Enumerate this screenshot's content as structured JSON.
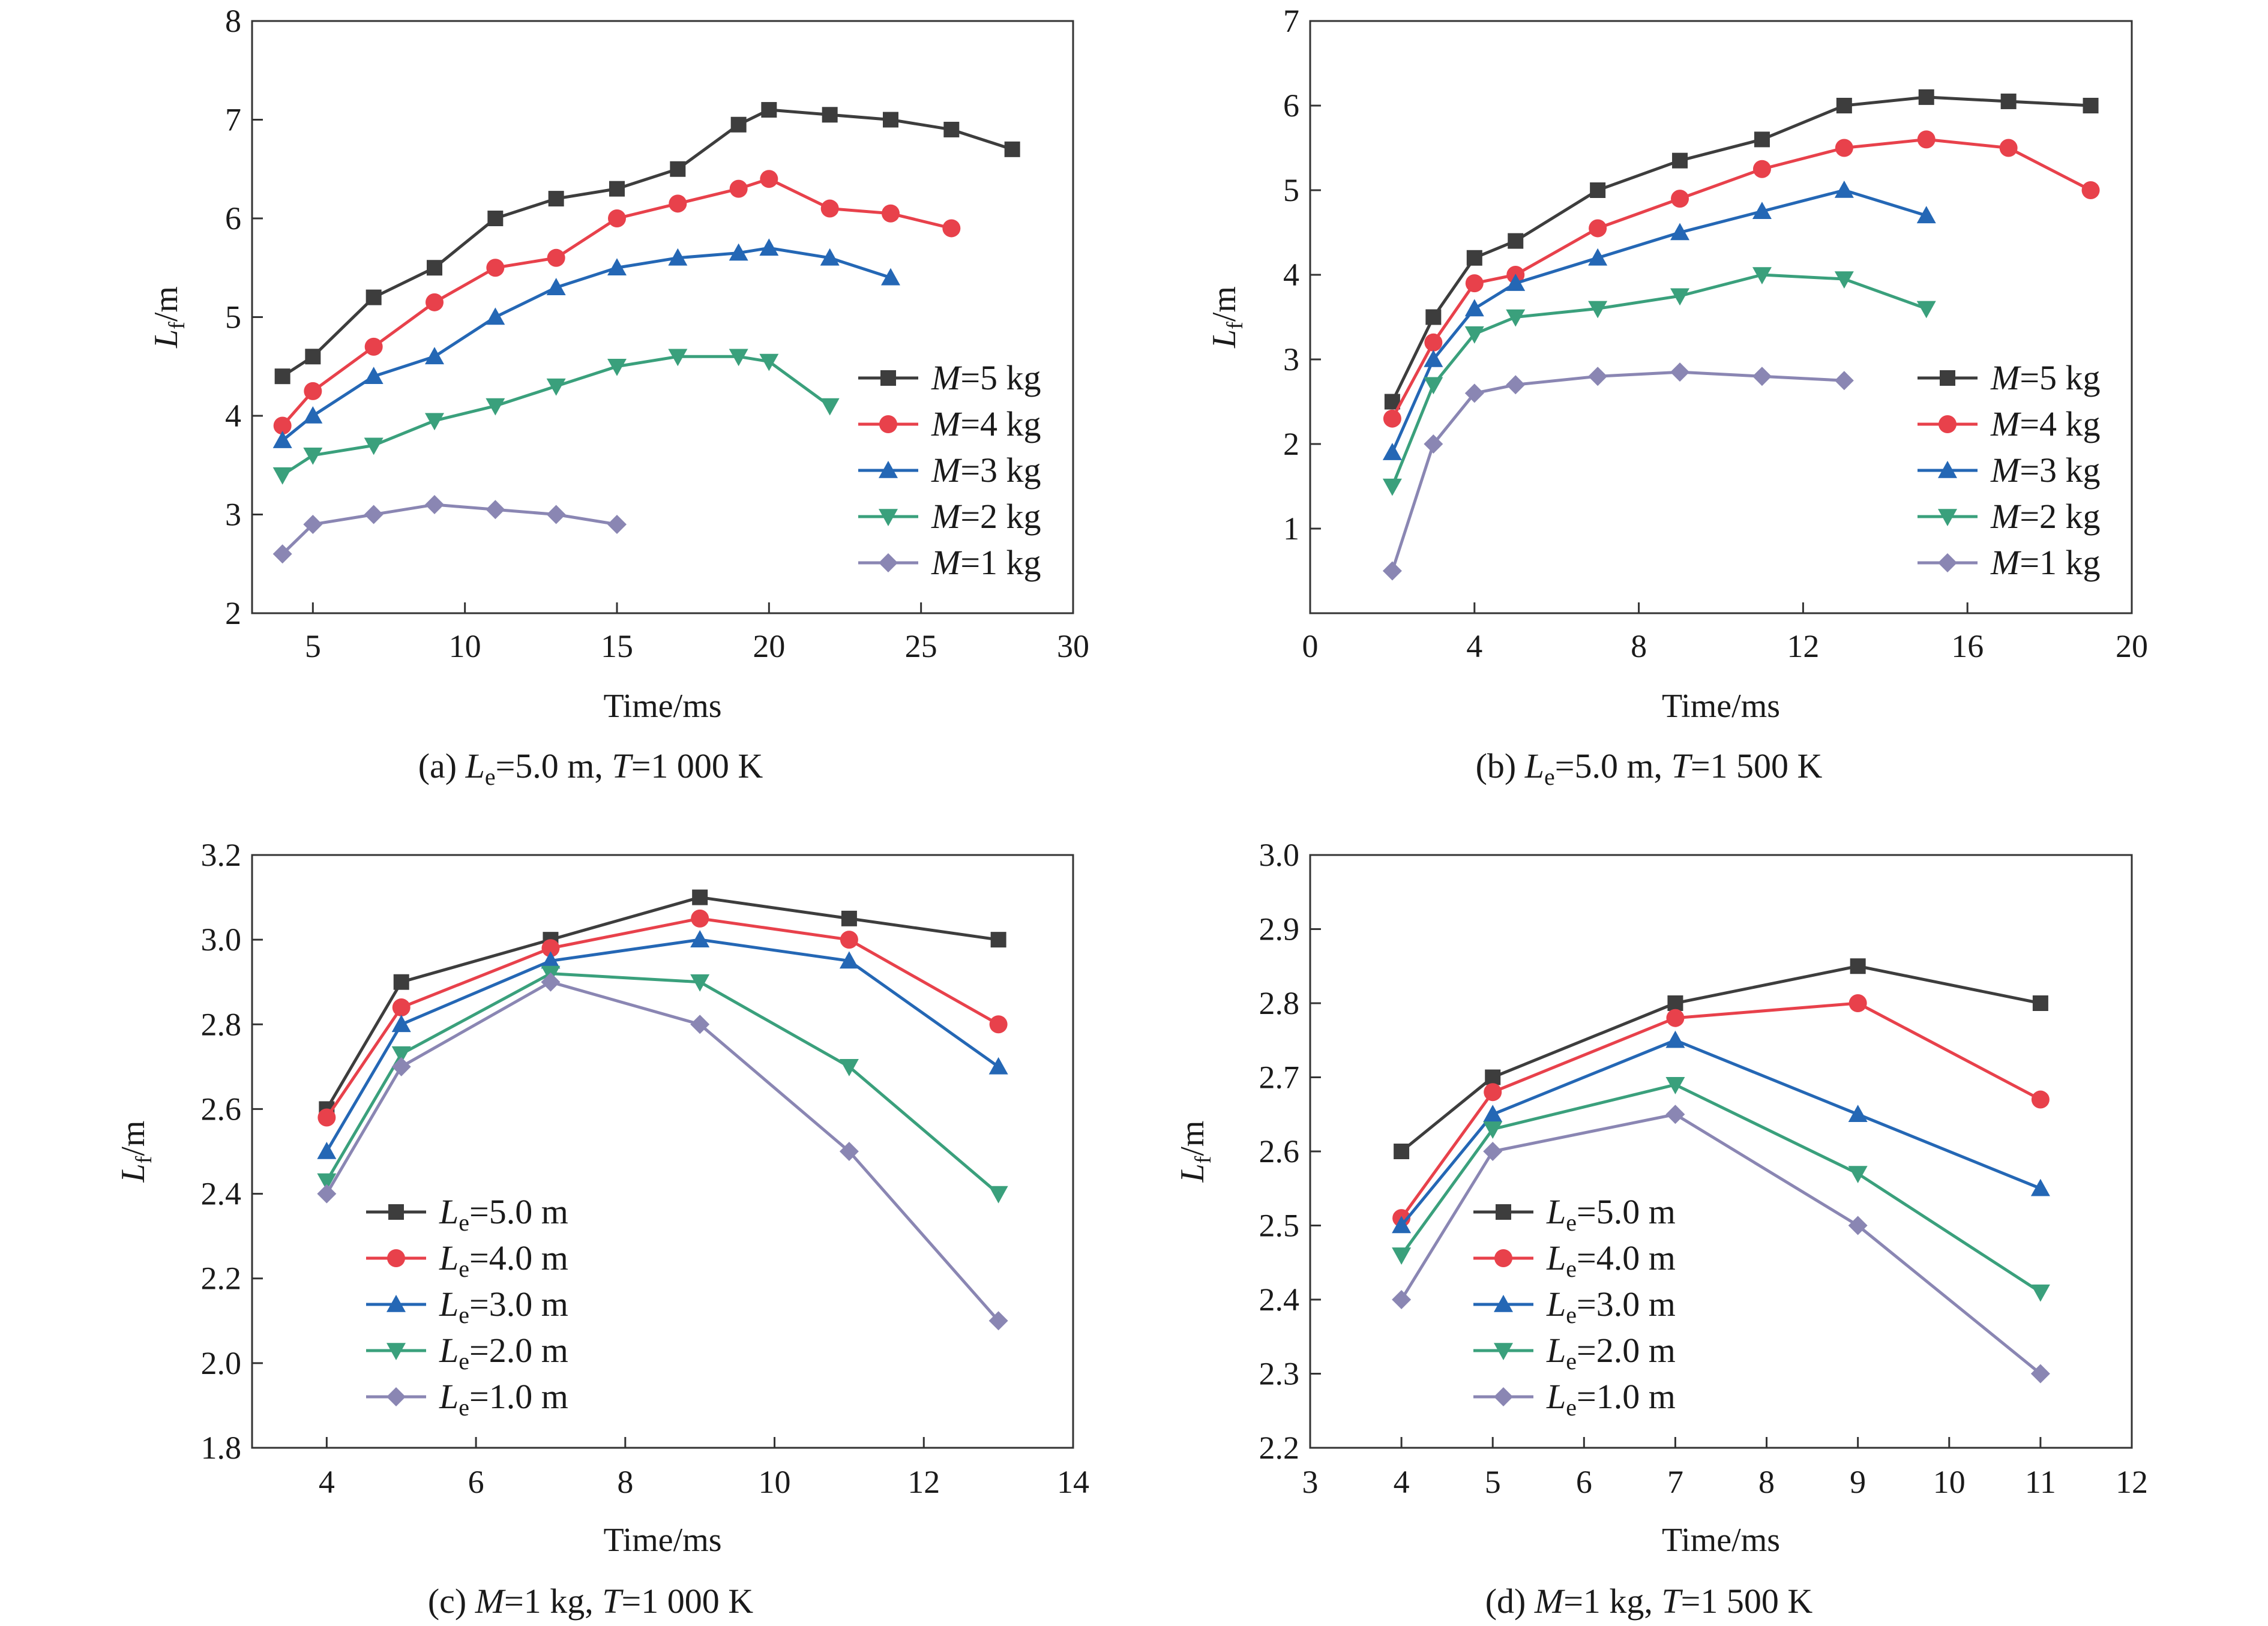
{
  "figure": {
    "panels": [
      {
        "caption": {
          "prefix": "(a) ",
          "v1": "L",
          "s1": "e",
          "r1": "=5.0 m, ",
          "v2": "T",
          "r2": "=1 000 K"
        },
        "xlabel": "Time/ms",
        "ylabel": {
          "main": "L",
          "sub": "f",
          "rest": "/m"
        },
        "legend": {
          "var": "M",
          "sub": "",
          "pre": "=",
          "suffix": " kg"
        }
      },
      {
        "caption": {
          "prefix": "(b) ",
          "v1": "L",
          "s1": "e",
          "r1": "=5.0 m, ",
          "v2": "T",
          "r2": "=1 500 K"
        },
        "xlabel": "Time/ms",
        "ylabel": {
          "main": "L",
          "sub": "f",
          "rest": "/m"
        },
        "legend": {
          "var": "M",
          "sub": "",
          "pre": "=",
          "suffix": " kg"
        }
      },
      {
        "caption": {
          "prefix": "(c) ",
          "v1": "M",
          "s1": "",
          "r1": "=1 kg, ",
          "v2": "T",
          "r2": "=1 000 K"
        },
        "xlabel": "Time/ms",
        "ylabel": {
          "main": "L",
          "sub": "f",
          "rest": "/m"
        },
        "legend": {
          "var": "L",
          "sub": "e",
          "pre": "=",
          "suffix": " m"
        }
      },
      {
        "caption": {
          "prefix": "(d) ",
          "v1": "M",
          "s1": "",
          "r1": "=1 kg, ",
          "v2": "T",
          "r2": "=1 500 K"
        },
        "xlabel": "Time/ms",
        "ylabel": {
          "main": "L",
          "sub": "f",
          "rest": "/m"
        },
        "legend": {
          "var": "L",
          "sub": "e",
          "pre": "=",
          "suffix": " m"
        }
      }
    ]
  },
  "chart_data": [
    {
      "type": "line",
      "xlim": [
        3,
        30
      ],
      "ylim": [
        2,
        8
      ],
      "xticks": [
        5,
        10,
        15,
        20,
        25,
        30
      ],
      "yticks": [
        2,
        3,
        4,
        5,
        6,
        7,
        8
      ],
      "tick_decimals": 0,
      "legend_position": "bottom-right",
      "series": [
        {
          "name": "5",
          "color": "#3d3d3d",
          "marker": "square",
          "x": [
            4,
            5,
            7,
            9,
            11,
            13,
            15,
            17,
            19,
            20,
            22,
            24,
            26,
            28
          ],
          "y": [
            4.4,
            4.6,
            5.2,
            5.5,
            6.0,
            6.2,
            6.3,
            6.5,
            6.95,
            7.1,
            7.05,
            7.0,
            6.9,
            6.7
          ]
        },
        {
          "name": "4",
          "color": "#e8414b",
          "marker": "circle",
          "x": [
            4,
            5,
            7,
            9,
            11,
            13,
            15,
            17,
            19,
            20,
            22,
            24,
            26
          ],
          "y": [
            3.9,
            4.25,
            4.7,
            5.15,
            5.5,
            5.6,
            6.0,
            6.15,
            6.3,
            6.4,
            6.1,
            6.05,
            5.9
          ]
        },
        {
          "name": "3",
          "color": "#2467b5",
          "marker": "triangle-up",
          "x": [
            4,
            5,
            7,
            9,
            11,
            13,
            15,
            17,
            19,
            20,
            22,
            24
          ],
          "y": [
            3.75,
            4.0,
            4.4,
            4.6,
            5.0,
            5.3,
            5.5,
            5.6,
            5.65,
            5.7,
            5.6,
            5.4
          ]
        },
        {
          "name": "2",
          "color": "#3aa07c",
          "marker": "triangle-down",
          "x": [
            4,
            5,
            7,
            9,
            11,
            13,
            15,
            17,
            19,
            20,
            22
          ],
          "y": [
            3.4,
            3.6,
            3.7,
            3.95,
            4.1,
            4.3,
            4.5,
            4.6,
            4.6,
            4.55,
            4.1
          ]
        },
        {
          "name": "1",
          "color": "#8a86b3",
          "marker": "diamond",
          "x": [
            4,
            5,
            7,
            9,
            11,
            13,
            15
          ],
          "y": [
            2.6,
            2.9,
            3.0,
            3.1,
            3.05,
            3.0,
            2.9
          ]
        }
      ]
    },
    {
      "type": "line",
      "xlim": [
        0,
        20
      ],
      "ylim": [
        0,
        7
      ],
      "xticks": [
        0,
        4,
        8,
        12,
        16,
        20
      ],
      "yticks": [
        1,
        2,
        3,
        4,
        5,
        6,
        7
      ],
      "tick_decimals": 0,
      "legend_position": "bottom-right",
      "series": [
        {
          "name": "5",
          "color": "#3d3d3d",
          "marker": "square",
          "x": [
            2,
            3,
            4,
            5,
            7,
            9,
            11,
            13,
            15,
            17,
            19
          ],
          "y": [
            2.5,
            3.5,
            4.2,
            4.4,
            5.0,
            5.35,
            5.6,
            6.0,
            6.1,
            6.05,
            6.0
          ]
        },
        {
          "name": "4",
          "color": "#e8414b",
          "marker": "circle",
          "x": [
            2,
            3,
            4,
            5,
            7,
            9,
            11,
            13,
            15,
            17,
            19
          ],
          "y": [
            2.3,
            3.2,
            3.9,
            4.0,
            4.55,
            4.9,
            5.25,
            5.5,
            5.6,
            5.5,
            5.0
          ]
        },
        {
          "name": "3",
          "color": "#2467b5",
          "marker": "triangle-up",
          "x": [
            2,
            3,
            4,
            5,
            7,
            9,
            11,
            13,
            15
          ],
          "y": [
            1.9,
            3.0,
            3.6,
            3.9,
            4.2,
            4.5,
            4.75,
            5.0,
            4.7
          ]
        },
        {
          "name": "2",
          "color": "#3aa07c",
          "marker": "triangle-down",
          "x": [
            2,
            3,
            4,
            5,
            7,
            9,
            11,
            13,
            15
          ],
          "y": [
            1.5,
            2.7,
            3.3,
            3.5,
            3.6,
            3.75,
            4.0,
            3.95,
            3.6
          ]
        },
        {
          "name": "1",
          "color": "#8a86b3",
          "marker": "diamond",
          "x": [
            2,
            3,
            4,
            5,
            7,
            9,
            11,
            13
          ],
          "y": [
            0.5,
            2.0,
            2.6,
            2.7,
            2.8,
            2.85,
            2.8,
            2.75
          ]
        }
      ]
    },
    {
      "type": "line",
      "xlim": [
        3,
        14
      ],
      "ylim": [
        1.8,
        3.2
      ],
      "xticks": [
        4,
        6,
        8,
        10,
        12,
        14
      ],
      "yticks": [
        1.8,
        2.0,
        2.2,
        2.4,
        2.6,
        2.8,
        3.0,
        3.2
      ],
      "tick_decimals": 1,
      "legend_position": "bottom-left",
      "series": [
        {
          "name": "5.0",
          "color": "#3d3d3d",
          "marker": "square",
          "x": [
            4,
            5,
            7,
            9,
            11,
            13
          ],
          "y": [
            2.6,
            2.9,
            3.0,
            3.1,
            3.05,
            3.0
          ]
        },
        {
          "name": "4.0",
          "color": "#e8414b",
          "marker": "circle",
          "x": [
            4,
            5,
            7,
            9,
            11,
            13
          ],
          "y": [
            2.58,
            2.84,
            2.98,
            3.05,
            3.0,
            2.8
          ]
        },
        {
          "name": "3.0",
          "color": "#2467b5",
          "marker": "triangle-up",
          "x": [
            4,
            5,
            7,
            9,
            11,
            13
          ],
          "y": [
            2.5,
            2.8,
            2.95,
            3.0,
            2.95,
            2.7
          ]
        },
        {
          "name": "2.0",
          "color": "#3aa07c",
          "marker": "triangle-down",
          "x": [
            4,
            5,
            7,
            9,
            11,
            13
          ],
          "y": [
            2.43,
            2.73,
            2.92,
            2.9,
            2.7,
            2.4
          ]
        },
        {
          "name": "1.0",
          "color": "#8a86b3",
          "marker": "diamond",
          "x": [
            4,
            5,
            7,
            9,
            11,
            13
          ],
          "y": [
            2.4,
            2.7,
            2.9,
            2.8,
            2.5,
            2.1
          ]
        }
      ]
    },
    {
      "type": "line",
      "xlim": [
        3,
        12
      ],
      "ylim": [
        2.2,
        3.0
      ],
      "xticks": [
        3,
        4,
        5,
        6,
        7,
        8,
        9,
        10,
        11,
        12
      ],
      "yticks": [
        2.2,
        2.3,
        2.4,
        2.5,
        2.6,
        2.7,
        2.8,
        2.9,
        3.0
      ],
      "tick_decimals": 1,
      "legend_position": "bottom-left",
      "series": [
        {
          "name": "5.0",
          "color": "#3d3d3d",
          "marker": "square",
          "x": [
            4,
            5,
            7,
            9,
            11
          ],
          "y": [
            2.6,
            2.7,
            2.8,
            2.85,
            2.8
          ]
        },
        {
          "name": "4.0",
          "color": "#e8414b",
          "marker": "circle",
          "x": [
            4,
            5,
            7,
            9,
            11
          ],
          "y": [
            2.51,
            2.68,
            2.78,
            2.8,
            2.67
          ]
        },
        {
          "name": "3.0",
          "color": "#2467b5",
          "marker": "triangle-up",
          "x": [
            4,
            5,
            7,
            9,
            11
          ],
          "y": [
            2.5,
            2.65,
            2.75,
            2.65,
            2.55
          ]
        },
        {
          "name": "2.0",
          "color": "#3aa07c",
          "marker": "triangle-down",
          "x": [
            4,
            5,
            7,
            9,
            11
          ],
          "y": [
            2.46,
            2.63,
            2.69,
            2.57,
            2.41
          ]
        },
        {
          "name": "1.0",
          "color": "#8a86b3",
          "marker": "diamond",
          "x": [
            4,
            5,
            7,
            9,
            11
          ],
          "y": [
            2.4,
            2.6,
            2.65,
            2.5,
            2.3
          ]
        }
      ]
    }
  ]
}
